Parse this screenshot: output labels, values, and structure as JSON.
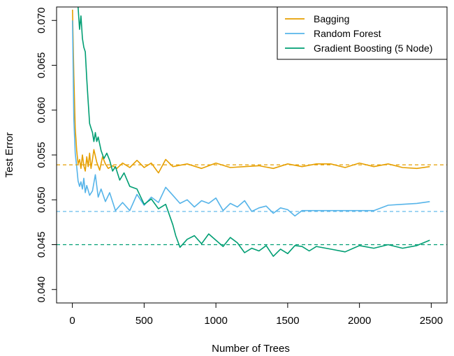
{
  "chart_data": {
    "type": "line",
    "title": "",
    "xlabel": "Number of Trees",
    "ylabel": "Test Error",
    "xlim": [
      -110,
      2610
    ],
    "ylim": [
      0.0385,
      0.0715
    ],
    "xticks": [
      0,
      500,
      1000,
      1500,
      2000,
      2500
    ],
    "yticks": [
      0.04,
      0.045,
      0.05,
      0.055,
      0.06,
      0.065,
      0.07
    ],
    "xtick_labels": [
      "0",
      "500",
      "1000",
      "1500",
      "2000",
      "2500"
    ],
    "ytick_labels": [
      "0.040",
      "0.045",
      "0.050",
      "0.055",
      "0.060",
      "0.065",
      "0.070"
    ],
    "grid": false,
    "legend_position": "top-right",
    "series": [
      {
        "name": "Bagging",
        "color": "#E69F00",
        "x": [
          1,
          10,
          20,
          30,
          40,
          50,
          60,
          70,
          80,
          90,
          100,
          110,
          120,
          130,
          140,
          150,
          170,
          190,
          210,
          230,
          250,
          280,
          310,
          350,
          400,
          450,
          500,
          550,
          600,
          650,
          700,
          800,
          900,
          1000,
          1100,
          1200,
          1300,
          1400,
          1500,
          1600,
          1700,
          1800,
          1900,
          2000,
          2100,
          2200,
          2300,
          2400,
          2490
        ],
        "values": [
          0.0712,
          0.064,
          0.058,
          0.0555,
          0.054,
          0.0545,
          0.0535,
          0.055,
          0.0538,
          0.0532,
          0.0548,
          0.0537,
          0.0552,
          0.0535,
          0.0545,
          0.0556,
          0.0542,
          0.0533,
          0.0548,
          0.054,
          0.0535,
          0.0538,
          0.0535,
          0.0541,
          0.0536,
          0.0544,
          0.0536,
          0.0541,
          0.053,
          0.0545,
          0.0537,
          0.054,
          0.0535,
          0.0541,
          0.0536,
          0.0537,
          0.0538,
          0.0535,
          0.054,
          0.0537,
          0.054,
          0.054,
          0.0536,
          0.0541,
          0.0537,
          0.054,
          0.0536,
          0.0535,
          0.0537
        ]
      },
      {
        "name": "Random Forest",
        "color": "#56B4E9",
        "x": [
          1,
          10,
          20,
          30,
          40,
          50,
          60,
          70,
          80,
          90,
          100,
          120,
          140,
          160,
          180,
          200,
          230,
          260,
          300,
          350,
          400,
          450,
          500,
          550,
          600,
          650,
          700,
          750,
          800,
          850,
          900,
          950,
          1000,
          1050,
          1100,
          1150,
          1200,
          1250,
          1300,
          1350,
          1400,
          1450,
          1500,
          1550,
          1600,
          1700,
          1800,
          1900,
          2000,
          2100,
          2200,
          2300,
          2400,
          2490
        ],
        "values": [
          0.07,
          0.059,
          0.0552,
          0.0537,
          0.0521,
          0.0515,
          0.052,
          0.0512,
          0.0524,
          0.0508,
          0.0516,
          0.0505,
          0.051,
          0.0528,
          0.0503,
          0.0512,
          0.0498,
          0.0508,
          0.0488,
          0.0497,
          0.0488,
          0.0506,
          0.0494,
          0.0503,
          0.0497,
          0.0514,
          0.0505,
          0.0496,
          0.05,
          0.0492,
          0.0499,
          0.0496,
          0.0502,
          0.0488,
          0.0496,
          0.0492,
          0.0499,
          0.0487,
          0.0491,
          0.0493,
          0.0485,
          0.0491,
          0.0489,
          0.0482,
          0.0488,
          0.0488,
          0.0488,
          0.0488,
          0.0488,
          0.0488,
          0.0494,
          0.0495,
          0.0496,
          0.0498
        ]
      },
      {
        "name": "Gradient Boosting (5 Node)",
        "color": "#009E73",
        "x": [
          40,
          50,
          60,
          70,
          80,
          90,
          100,
          110,
          120,
          130,
          140,
          150,
          160,
          170,
          180,
          200,
          220,
          240,
          260,
          280,
          300,
          330,
          360,
          400,
          450,
          500,
          550,
          600,
          650,
          700,
          720,
          750,
          800,
          850,
          900,
          950,
          1000,
          1050,
          1100,
          1150,
          1200,
          1250,
          1300,
          1350,
          1400,
          1450,
          1500,
          1550,
          1600,
          1650,
          1700,
          1800,
          1900,
          2000,
          2100,
          2200,
          2300,
          2400,
          2490
        ],
        "values": [
          0.0715,
          0.069,
          0.0705,
          0.068,
          0.067,
          0.0665,
          0.0635,
          0.061,
          0.0585,
          0.058,
          0.0575,
          0.0565,
          0.0575,
          0.0565,
          0.057,
          0.0555,
          0.0546,
          0.0552,
          0.0544,
          0.0532,
          0.0537,
          0.0522,
          0.053,
          0.0515,
          0.0512,
          0.0495,
          0.0501,
          0.049,
          0.0495,
          0.0472,
          0.046,
          0.0447,
          0.0456,
          0.046,
          0.0451,
          0.0462,
          0.0455,
          0.0448,
          0.0458,
          0.0452,
          0.0441,
          0.0446,
          0.0443,
          0.0449,
          0.0437,
          0.0445,
          0.044,
          0.0449,
          0.0448,
          0.0443,
          0.0448,
          0.0445,
          0.0442,
          0.0449,
          0.0446,
          0.045,
          0.0446,
          0.0449,
          0.0455
        ]
      }
    ],
    "reference_lines": [
      {
        "series": "Bagging",
        "y": 0.0539,
        "color": "#E69F00"
      },
      {
        "series": "Random Forest",
        "y": 0.0487,
        "color": "#56B4E9"
      },
      {
        "series": "Gradient Boosting (5 Node)",
        "y": 0.045,
        "color": "#009E73"
      }
    ]
  }
}
